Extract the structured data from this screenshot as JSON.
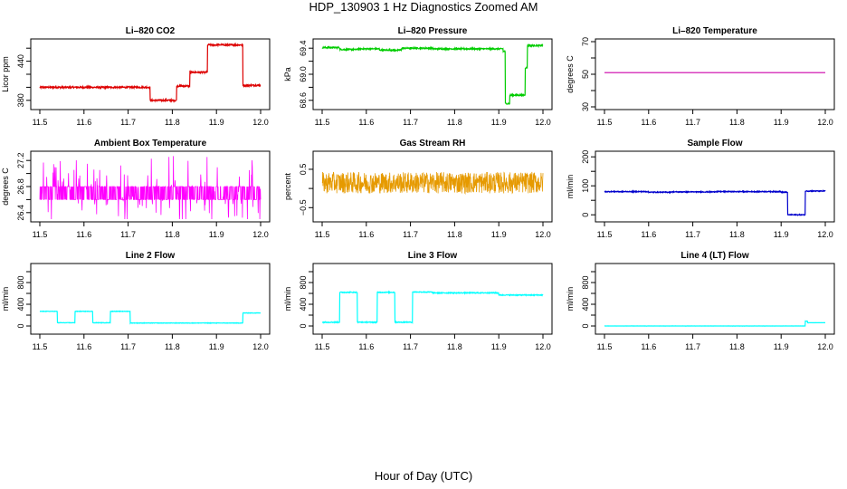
{
  "figure": {
    "title": "HDP_130903  1 Hz Diagnostics Zoomed AM",
    "xlabel": "Hour of Day (UTC)"
  },
  "colors": {
    "red": "#dd0000",
    "green": "#00cc00",
    "magenta": "#ff00ff",
    "orange": "#e69a00",
    "blue": "#0000cc",
    "cyan": "#00ffff"
  },
  "chart_data": [
    {
      "type": "line",
      "title": "Li–820 CO2",
      "ylabel": "Licor ppm",
      "color": "#dd0000",
      "xlim": [
        11.5,
        12.0
      ],
      "ylim": [
        370,
        470
      ],
      "xticks": [
        "11.5",
        "11.6",
        "11.7",
        "11.8",
        "11.9",
        "12.0"
      ],
      "yticks": [
        380,
        400,
        420,
        440,
        460
      ],
      "ytick_labels": [
        "380",
        "",
        "",
        "440",
        ""
      ],
      "noise": 1.2,
      "segments": [
        [
          11.5,
          11.75,
          400
        ],
        [
          11.75,
          11.81,
          380
        ],
        [
          11.81,
          11.84,
          402
        ],
        [
          11.84,
          11.88,
          423
        ],
        [
          11.88,
          11.96,
          465
        ],
        [
          11.96,
          12.0,
          403
        ]
      ]
    },
    {
      "type": "line",
      "title": "Li–820 Pressure",
      "ylabel": "kPa",
      "color": "#00cc00",
      "xlim": [
        11.5,
        12.0
      ],
      "ylim": [
        68.5,
        69.5
      ],
      "xticks": [
        "11.5",
        "11.6",
        "11.7",
        "11.8",
        "11.9",
        "12.0"
      ],
      "yticks": [
        68.6,
        68.8,
        69.0,
        69.2,
        69.4
      ],
      "ytick_labels": [
        "68.6",
        "",
        "69.0",
        "",
        "69.4"
      ],
      "noise": 0.01,
      "segments": [
        [
          11.5,
          11.54,
          69.41
        ],
        [
          11.54,
          11.58,
          69.38
        ],
        [
          11.58,
          11.63,
          69.39
        ],
        [
          11.63,
          11.68,
          69.37
        ],
        [
          11.68,
          11.75,
          69.4
        ],
        [
          11.75,
          11.91,
          69.39
        ],
        [
          11.91,
          11.915,
          69.35
        ],
        [
          11.915,
          11.925,
          68.55
        ],
        [
          11.925,
          11.96,
          68.68
        ],
        [
          11.96,
          11.965,
          69.1
        ],
        [
          11.965,
          12.0,
          69.44
        ]
      ]
    },
    {
      "type": "line",
      "title": "Li–820 Temperature",
      "ylabel": "degrees C",
      "color": "#cc00aa",
      "xlim": [
        11.5,
        12.0
      ],
      "ylim": [
        30,
        70
      ],
      "xticks": [
        "11.5",
        "11.6",
        "11.7",
        "11.8",
        "11.9",
        "12.0"
      ],
      "yticks": [
        30,
        40,
        50,
        60,
        70
      ],
      "ytick_labels": [
        "30",
        "",
        "50",
        "",
        "70"
      ],
      "noise": 0,
      "segments": [
        [
          11.5,
          12.0,
          51
        ]
      ]
    },
    {
      "type": "line",
      "title": "Ambient Box Temperature",
      "ylabel": "degrees C",
      "color": "#ff00ff",
      "xlim": [
        11.5,
        12.0
      ],
      "ylim": [
        26.3,
        27.3
      ],
      "xticks": [
        "11.5",
        "11.6",
        "11.7",
        "11.8",
        "11.9",
        "12.0"
      ],
      "yticks": [
        26.4,
        26.6,
        26.8,
        27.0,
        27.2
      ],
      "ytick_labels": [
        "26.4",
        "",
        "26.8",
        "",
        "27.2"
      ],
      "noise": 0.3,
      "binary": [
        26.6,
        26.8
      ],
      "segments": [
        [
          11.5,
          11.75,
          26.7
        ],
        [
          11.75,
          12.0,
          26.65
        ]
      ]
    },
    {
      "type": "line",
      "title": "Gas Stream RH",
      "ylabel": "percent",
      "color": "#e69a00",
      "xlim": [
        11.5,
        12.0
      ],
      "ylim": [
        -0.8,
        0.9
      ],
      "xticks": [
        "11.5",
        "11.6",
        "11.7",
        "11.8",
        "11.9",
        "12.0"
      ],
      "yticks": [
        -0.5,
        0,
        0.5
      ],
      "ytick_labels": [
        "−0.5",
        "",
        "0.5"
      ],
      "noise": 0.28,
      "segments": [
        [
          11.5,
          12.0,
          0.15
        ]
      ]
    },
    {
      "type": "line",
      "title": "Sample Flow",
      "ylabel": "ml/min",
      "color": "#0000cc",
      "xlim": [
        11.5,
        12.0
      ],
      "ylim": [
        -15,
        210
      ],
      "xticks": [
        "11.5",
        "11.6",
        "11.7",
        "11.8",
        "11.9",
        "12.0"
      ],
      "yticks": [
        0,
        50,
        100,
        150,
        200
      ],
      "ytick_labels": [
        "0",
        "",
        "100",
        "",
        "200"
      ],
      "noise": 1.5,
      "segments": [
        [
          11.5,
          11.6,
          80
        ],
        [
          11.6,
          11.65,
          78
        ],
        [
          11.65,
          11.75,
          79
        ],
        [
          11.75,
          11.9,
          80
        ],
        [
          11.9,
          11.915,
          78
        ],
        [
          11.915,
          11.955,
          0
        ],
        [
          11.955,
          12.0,
          82
        ]
      ]
    },
    {
      "type": "line",
      "title": "Line 2 Flow",
      "ylabel": "ml/min",
      "color": "#00ffff",
      "xlim": [
        11.5,
        12.0
      ],
      "ylim": [
        -100,
        1100
      ],
      "xticks": [
        "11.5",
        "11.6",
        "11.7",
        "11.8",
        "11.9",
        "12.0"
      ],
      "yticks": [
        0,
        200,
        400,
        600,
        800,
        1000
      ],
      "ytick_labels": [
        "0",
        "",
        "400",
        "",
        "800",
        ""
      ],
      "noise": 4,
      "segments": [
        [
          11.5,
          11.54,
          270
        ],
        [
          11.54,
          11.58,
          60
        ],
        [
          11.58,
          11.62,
          270
        ],
        [
          11.62,
          11.66,
          60
        ],
        [
          11.66,
          11.705,
          270
        ],
        [
          11.705,
          11.96,
          55
        ],
        [
          11.96,
          12.0,
          240
        ]
      ]
    },
    {
      "type": "line",
      "title": "Line 3 Flow",
      "ylabel": "ml/min",
      "color": "#00ffff",
      "xlim": [
        11.5,
        12.0
      ],
      "ylim": [
        -100,
        1100
      ],
      "xticks": [
        "11.5",
        "11.6",
        "11.7",
        "11.8",
        "11.9",
        "12.0"
      ],
      "yticks": [
        0,
        200,
        400,
        600,
        800,
        1000
      ],
      "ytick_labels": [
        "0",
        "",
        "400",
        "",
        "800",
        ""
      ],
      "noise": 8,
      "segments": [
        [
          11.5,
          11.54,
          70
        ],
        [
          11.54,
          11.58,
          620
        ],
        [
          11.58,
          11.625,
          70
        ],
        [
          11.625,
          11.665,
          620
        ],
        [
          11.665,
          11.705,
          70
        ],
        [
          11.705,
          11.75,
          625
        ],
        [
          11.75,
          11.9,
          610
        ],
        [
          11.9,
          12.0,
          570
        ]
      ]
    },
    {
      "type": "line",
      "title": "Line 4 (LT) Flow",
      "ylabel": "ml/min",
      "color": "#00ffff",
      "xlim": [
        11.5,
        12.0
      ],
      "ylim": [
        -100,
        1100
      ],
      "xticks": [
        "11.5",
        "11.6",
        "11.7",
        "11.8",
        "11.9",
        "12.0"
      ],
      "yticks": [
        0,
        200,
        400,
        600,
        800,
        1000
      ],
      "ytick_labels": [
        "0",
        "",
        "400",
        "",
        "800",
        ""
      ],
      "noise": 1,
      "segments": [
        [
          11.5,
          11.955,
          0
        ],
        [
          11.955,
          11.96,
          90
        ],
        [
          11.96,
          12.0,
          60
        ]
      ]
    }
  ]
}
